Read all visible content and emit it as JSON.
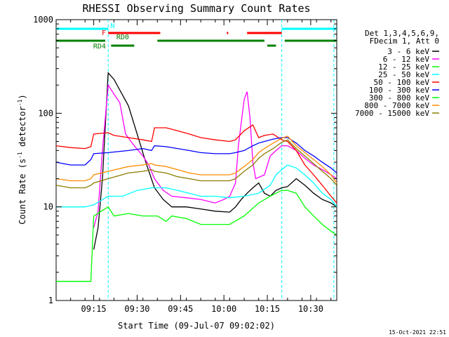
{
  "chart_data": {
    "type": "line",
    "title": "RHESSI Observing Summary Count Rates",
    "xlabel": "Start Time (09-Jul-07 09:02:02)",
    "ylabel_main": "Count Rate (s",
    "ylabel_sup1": "-1",
    "ylabel_mid": " detector",
    "ylabel_sup2": "-1",
    "ylabel_end": ")",
    "x_unit": "minutes since 09:02:02",
    "x_range": [
      0,
      97
    ],
    "y_scale": "log",
    "y_range": [
      1,
      1000
    ],
    "x_ticks": [
      {
        "label": "09:15",
        "value": 13
      },
      {
        "label": "09:30",
        "value": 28
      },
      {
        "label": "09:45",
        "value": 43
      },
      {
        "label": "10:00",
        "value": 58
      },
      {
        "label": "10:15",
        "value": 73
      },
      {
        "label": "10:30",
        "value": 88
      }
    ],
    "y_ticks": [
      {
        "label": "1",
        "value": 1
      },
      {
        "label": "10",
        "value": 10
      },
      {
        "label": "100",
        "value": 100
      },
      {
        "label": "1000",
        "value": 1000
      }
    ],
    "legend_header": [
      "Det 1,3,4,5,6,9,",
      "FDecim 1, Att 0"
    ],
    "series": [
      {
        "name": "3 - 6 keV",
        "color": "#000000",
        "points": [
          [
            13,
            3.5
          ],
          [
            14.5,
            6
          ],
          [
            16,
            20
          ],
          [
            18,
            270
          ],
          [
            20,
            230
          ],
          [
            25,
            120
          ],
          [
            28,
            60
          ],
          [
            31,
            30
          ],
          [
            34,
            16
          ],
          [
            37,
            12
          ],
          [
            40,
            10
          ],
          [
            45,
            10
          ],
          [
            50,
            9.5
          ],
          [
            55,
            9
          ],
          [
            60,
            8.8
          ],
          [
            62,
            10
          ],
          [
            64,
            12
          ],
          [
            66,
            14
          ],
          [
            68,
            16
          ],
          [
            70,
            18
          ],
          [
            72,
            14
          ],
          [
            74,
            13
          ],
          [
            76,
            15
          ],
          [
            78,
            16
          ],
          [
            80,
            16.5
          ]
        ]
      },
      {
        "name": "6 - 12 keV",
        "color": "#ff00ff",
        "points": [
          [
            13,
            6
          ],
          [
            14.5,
            9
          ],
          [
            16,
            40
          ],
          [
            18,
            200
          ],
          [
            20,
            160
          ],
          [
            22,
            130
          ],
          [
            24,
            60
          ],
          [
            27,
            45
          ],
          [
            30,
            35
          ],
          [
            32,
            28
          ],
          [
            34,
            20
          ],
          [
            37,
            15
          ],
          [
            40,
            13
          ],
          [
            45,
            12.5
          ],
          [
            50,
            12
          ],
          [
            55,
            11
          ],
          [
            58,
            12
          ],
          [
            60,
            13
          ],
          [
            62,
            18
          ],
          [
            63,
            45
          ],
          [
            65,
            140
          ],
          [
            66,
            170
          ],
          [
            67,
            90
          ],
          [
            68,
            30
          ],
          [
            69,
            20
          ],
          [
            72,
            22
          ],
          [
            74,
            35
          ],
          [
            76,
            40
          ],
          [
            78,
            45
          ],
          [
            80,
            45
          ]
        ]
      },
      {
        "name": "12 - 25 keV",
        "color": "#00ff00",
        "points": [
          [
            0,
            1.6
          ],
          [
            5,
            1.6
          ],
          [
            10,
            1.6
          ],
          [
            12,
            1.6
          ],
          [
            13,
            8
          ],
          [
            18,
            10
          ],
          [
            20,
            8
          ],
          [
            25,
            8.5
          ],
          [
            30,
            8
          ],
          [
            35,
            8
          ],
          [
            38,
            7
          ],
          [
            40,
            8
          ],
          [
            45,
            7.5
          ],
          [
            50,
            6.5
          ],
          [
            55,
            6.5
          ],
          [
            60,
            6.5
          ],
          [
            65,
            8
          ],
          [
            70,
            11
          ],
          [
            74,
            13
          ],
          [
            76,
            14
          ],
          [
            78,
            15
          ],
          [
            80,
            15
          ]
        ]
      },
      {
        "name": "25 - 50 keV",
        "color": "#00ffff",
        "points": [
          [
            0,
            10
          ],
          [
            5,
            10
          ],
          [
            10,
            10
          ],
          [
            13,
            10.5
          ],
          [
            18,
            13
          ],
          [
            23,
            13
          ],
          [
            28,
            15
          ],
          [
            33,
            16
          ],
          [
            38,
            16
          ],
          [
            42,
            15
          ],
          [
            46,
            14
          ],
          [
            50,
            13
          ],
          [
            55,
            13
          ],
          [
            60,
            12.5
          ],
          [
            65,
            13
          ],
          [
            70,
            14
          ],
          [
            74,
            17
          ],
          [
            76,
            22
          ],
          [
            78,
            25
          ],
          [
            80,
            28
          ]
        ]
      },
      {
        "name": "50 - 100 keV",
        "color": "#ff0000",
        "points": [
          [
            0,
            45
          ],
          [
            5,
            43
          ],
          [
            10,
            42
          ],
          [
            12,
            44
          ],
          [
            13,
            60
          ],
          [
            18,
            62
          ],
          [
            20,
            58
          ],
          [
            25,
            55
          ],
          [
            30,
            52
          ],
          [
            33,
            50
          ],
          [
            34,
            70
          ],
          [
            38,
            70
          ],
          [
            42,
            65
          ],
          [
            46,
            60
          ],
          [
            50,
            55
          ],
          [
            55,
            52
          ],
          [
            60,
            50
          ],
          [
            62,
            52
          ],
          [
            65,
            65
          ],
          [
            68,
            75
          ],
          [
            70,
            55
          ],
          [
            72,
            58
          ],
          [
            75,
            60
          ],
          [
            78,
            52
          ],
          [
            80,
            50
          ]
        ]
      },
      {
        "name": "100 - 300 keV",
        "color": "#0000ff",
        "points": [
          [
            0,
            30
          ],
          [
            5,
            28
          ],
          [
            10,
            28
          ],
          [
            12,
            32
          ],
          [
            13,
            37
          ],
          [
            18,
            38
          ],
          [
            25,
            40
          ],
          [
            30,
            42
          ],
          [
            33,
            40
          ],
          [
            34,
            45
          ],
          [
            38,
            44
          ],
          [
            42,
            42
          ],
          [
            46,
            40
          ],
          [
            50,
            38
          ],
          [
            55,
            37
          ],
          [
            60,
            37
          ],
          [
            62,
            38
          ],
          [
            65,
            40
          ],
          [
            68,
            45
          ],
          [
            70,
            48
          ],
          [
            72,
            50
          ],
          [
            75,
            53
          ],
          [
            78,
            55
          ],
          [
            80,
            55
          ]
        ]
      },
      {
        "name": "300 - 800 keV",
        "color": "#00ff00",
        "points": [
          [
            0,
            1.6
          ],
          [
            5,
            1.6
          ],
          [
            10,
            1.6
          ],
          [
            12,
            1.6
          ]
        ]
      },
      {
        "name": "800 - 7000 keV",
        "color": "#ff8c00",
        "points": [
          [
            0,
            20
          ],
          [
            5,
            19
          ],
          [
            10,
            19
          ],
          [
            12,
            20
          ],
          [
            13,
            22
          ],
          [
            18,
            24
          ],
          [
            25,
            27
          ],
          [
            30,
            28
          ],
          [
            33,
            29
          ],
          [
            34,
            28
          ],
          [
            38,
            27
          ],
          [
            42,
            25
          ],
          [
            46,
            23
          ],
          [
            50,
            22
          ],
          [
            55,
            22
          ],
          [
            60,
            22
          ],
          [
            62,
            23
          ],
          [
            65,
            27
          ],
          [
            68,
            32
          ],
          [
            70,
            38
          ],
          [
            72,
            42
          ],
          [
            75,
            48
          ],
          [
            78,
            54
          ],
          [
            80,
            57
          ]
        ]
      },
      {
        "name": "7000 - 15000 keV",
        "color": "#8b7d00",
        "points": [
          [
            0,
            17
          ],
          [
            5,
            16
          ],
          [
            10,
            16
          ],
          [
            12,
            17
          ],
          [
            13,
            18
          ],
          [
            18,
            20
          ],
          [
            25,
            23
          ],
          [
            30,
            24
          ],
          [
            33,
            25
          ],
          [
            34,
            24
          ],
          [
            38,
            23
          ],
          [
            42,
            21
          ],
          [
            46,
            20
          ],
          [
            50,
            19
          ],
          [
            55,
            19
          ],
          [
            60,
            19
          ],
          [
            62,
            20
          ],
          [
            65,
            24
          ],
          [
            68,
            28
          ],
          [
            70,
            33
          ],
          [
            72,
            37
          ],
          [
            75,
            42
          ],
          [
            78,
            49
          ],
          [
            80,
            52
          ]
        ]
      }
    ],
    "post_series": [
      {
        "color": "#000000",
        "points": [
          [
            80,
            16.5
          ],
          [
            83,
            20
          ],
          [
            86,
            17
          ],
          [
            89,
            14
          ],
          [
            92,
            12
          ],
          [
            95,
            11
          ],
          [
            97,
            10
          ]
        ]
      },
      {
        "color": "#ff00ff",
        "points": [
          [
            80,
            45
          ],
          [
            83,
            40
          ],
          [
            86,
            33
          ],
          [
            89,
            28
          ],
          [
            92,
            25
          ],
          [
            95,
            22
          ],
          [
            97,
            20
          ]
        ]
      },
      {
        "color": "#00ff00",
        "points": [
          [
            80,
            15
          ],
          [
            83,
            14
          ],
          [
            86,
            10
          ],
          [
            89,
            8
          ],
          [
            92,
            6.5
          ],
          [
            95,
            5.5
          ],
          [
            97,
            5
          ]
        ]
      },
      {
        "color": "#00ffff",
        "points": [
          [
            80,
            28
          ],
          [
            83,
            26
          ],
          [
            86,
            22
          ],
          [
            89,
            18
          ],
          [
            92,
            14
          ],
          [
            95,
            12
          ],
          [
            97,
            10
          ]
        ]
      },
      {
        "color": "#ff0000",
        "points": [
          [
            80,
            50
          ],
          [
            83,
            40
          ],
          [
            86,
            28
          ],
          [
            89,
            22
          ],
          [
            92,
            17
          ],
          [
            95,
            13
          ],
          [
            97,
            11
          ]
        ]
      },
      {
        "color": "#0000ff",
        "points": [
          [
            80,
            55
          ],
          [
            83,
            48
          ],
          [
            86,
            40
          ],
          [
            89,
            35
          ],
          [
            92,
            30
          ],
          [
            95,
            26
          ],
          [
            97,
            23
          ]
        ]
      },
      {
        "color": "#ff8c00",
        "points": [
          [
            80,
            57
          ],
          [
            83,
            45
          ],
          [
            86,
            38
          ],
          [
            89,
            32
          ],
          [
            92,
            27
          ],
          [
            95,
            22
          ],
          [
            97,
            18
          ]
        ]
      },
      {
        "color": "#8b7d00",
        "points": [
          [
            80,
            52
          ],
          [
            83,
            42
          ],
          [
            86,
            35
          ],
          [
            89,
            29
          ],
          [
            92,
            24
          ],
          [
            95,
            20
          ],
          [
            97,
            17
          ]
        ]
      }
    ],
    "annotations": {
      "bars": [
        {
          "label": "N",
          "color": "#00ffff",
          "segments": [
            [
              0,
              18
            ],
            [
              78,
              97
            ]
          ],
          "level": "top",
          "label_at": 19.5
        },
        {
          "label": "F",
          "color": "#ff0000",
          "segments": [
            [
              18,
              36
            ],
            [
              59,
              59.5
            ],
            [
              66,
              78
            ]
          ],
          "level": "flare",
          "label_at": 16.5
        },
        {
          "label": "RD0",
          "color": "#008000",
          "segments": [
            [
              0,
              17
            ],
            [
              35,
              72
            ],
            [
              79,
              97
            ]
          ],
          "level": "rd0",
          "label_at": 23
        },
        {
          "label": "RD4",
          "color": "#008000",
          "segments": [
            [
              19,
              27
            ],
            [
              73,
              76
            ]
          ],
          "level": "rd4",
          "label_at": 15
        }
      ],
      "vlines": [
        18,
        78,
        96
      ]
    },
    "grid": false,
    "legend_position": "right",
    "timestamp": "15-Oct-2021 22:51"
  }
}
